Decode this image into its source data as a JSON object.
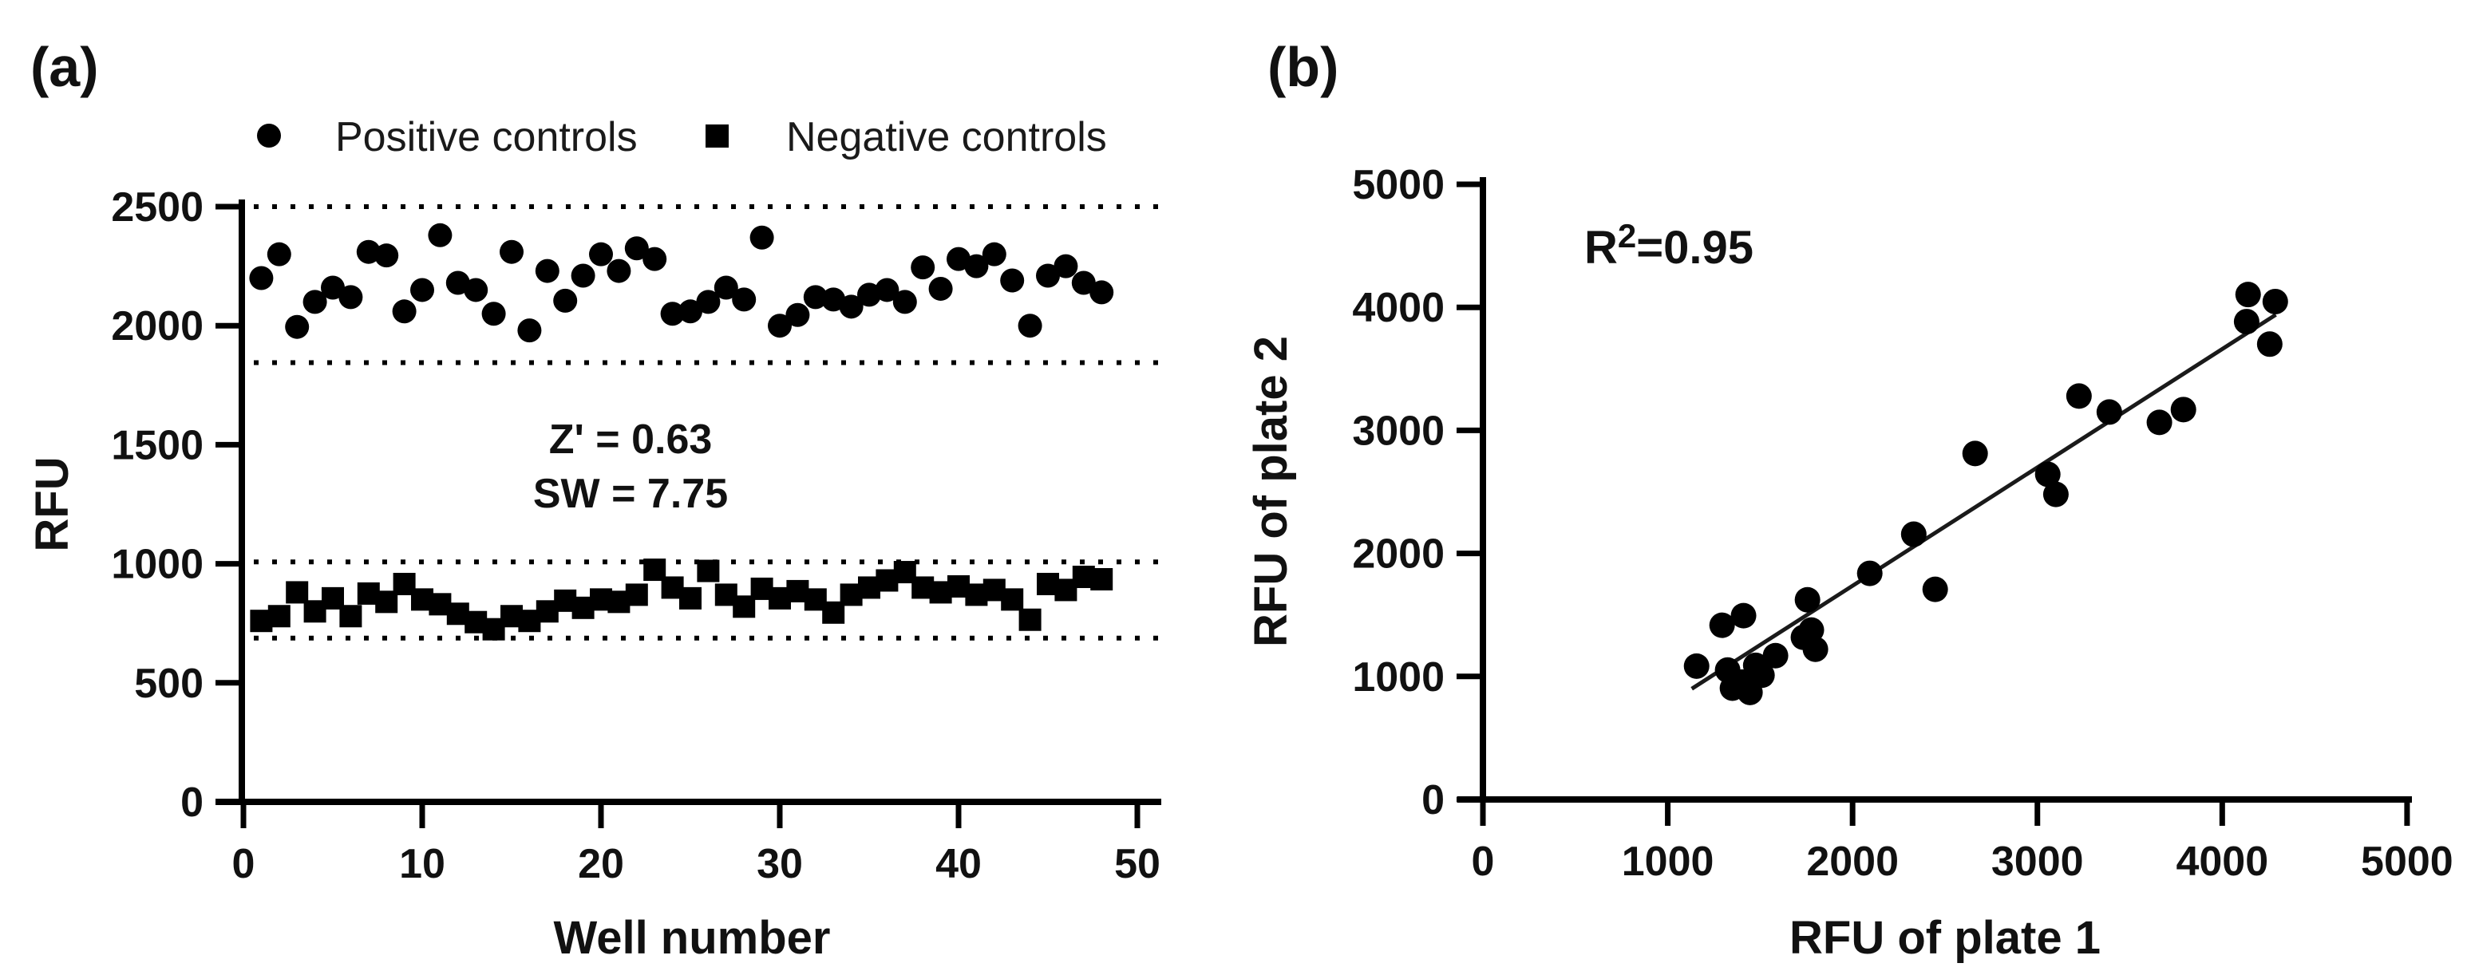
{
  "figure": {
    "panel_a_label": "(a)",
    "panel_b_label": "(b)",
    "background": "#ffffff",
    "marker_color": "#000000"
  },
  "chart_data": [
    {
      "id": "panel-a",
      "type": "scatter",
      "title": "",
      "xlabel": "Well number",
      "ylabel": "RFU",
      "xlim": [
        0,
        51
      ],
      "ylim": [
        0,
        2500
      ],
      "xticks": [
        0,
        10,
        20,
        30,
        40,
        50
      ],
      "yticks": [
        0,
        500,
        1000,
        1500,
        2000,
        2500
      ],
      "grid": false,
      "legend_position": "top",
      "legend": [
        {
          "label": "Positive controls",
          "marker": "circle"
        },
        {
          "label": "Negative controls",
          "marker": "square"
        }
      ],
      "annotations": {
        "z_prime": "Z' = 0.63",
        "sw": "SW = 7.75"
      },
      "dotted_lines_y": [
        2500,
        1845,
        1008,
        688
      ],
      "x_start": 1,
      "x_step": 1,
      "series": [
        {
          "name": "Positive controls",
          "marker": "circle",
          "values": [
            2200,
            2300,
            1995,
            2100,
            2160,
            2120,
            2310,
            2295,
            2060,
            2150,
            2380,
            2180,
            2150,
            2050,
            2310,
            1980,
            2230,
            2105,
            2210,
            2300,
            2230,
            2325,
            2280,
            2050,
            2060,
            2100,
            2160,
            2110,
            2370,
            2000,
            2045,
            2120,
            2110,
            2080,
            2130,
            2150,
            2100,
            2245,
            2155,
            2280,
            2250,
            2300,
            2190,
            2000,
            2210,
            2250,
            2180,
            2140
          ]
        },
        {
          "name": "Negative controls",
          "marker": "square",
          "values": [
            760,
            780,
            880,
            800,
            855,
            780,
            875,
            840,
            915,
            850,
            830,
            790,
            755,
            725,
            780,
            760,
            800,
            845,
            815,
            850,
            840,
            870,
            975,
            900,
            855,
            970,
            870,
            820,
            895,
            855,
            885,
            850,
            795,
            870,
            900,
            930,
            965,
            900,
            880,
            905,
            870,
            890,
            850,
            765,
            915,
            890,
            945,
            935
          ]
        }
      ]
    },
    {
      "id": "panel-b",
      "type": "scatter",
      "title": "",
      "xlabel": "RFU of plate 1",
      "ylabel": "RFU of plate 2",
      "xlim": [
        0,
        5000
      ],
      "ylim": [
        0,
        5000
      ],
      "xticks": [
        0,
        1000,
        2000,
        3000,
        4000,
        5000
      ],
      "yticks": [
        0,
        1000,
        2000,
        3000,
        4000,
        5000
      ],
      "grid": false,
      "annotation_r2": {
        "base": "R",
        "sup": "2",
        "rest": "=0.95"
      },
      "points": [
        [
          1156,
          1084
        ],
        [
          1294,
          1416
        ],
        [
          1410,
          1494
        ],
        [
          1324,
          1052
        ],
        [
          1350,
          905
        ],
        [
          1402,
          954
        ],
        [
          1445,
          870
        ],
        [
          1476,
          1090
        ],
        [
          1510,
          1010
        ],
        [
          1583,
          1169
        ],
        [
          1734,
          1318
        ],
        [
          1777,
          1377
        ],
        [
          1799,
          1221
        ],
        [
          1756,
          1623
        ],
        [
          2093,
          1838
        ],
        [
          2331,
          2156
        ],
        [
          2447,
          1708
        ],
        [
          2663,
          2812
        ],
        [
          3056,
          2643
        ],
        [
          3100,
          2480
        ],
        [
          3225,
          3279
        ],
        [
          3389,
          3149
        ],
        [
          3660,
          3065
        ],
        [
          3790,
          3169
        ],
        [
          4132,
          3884
        ],
        [
          4140,
          4104
        ],
        [
          4257,
          3701
        ],
        [
          4287,
          4047
        ]
      ],
      "fit_line": {
        "x1": 1130,
        "y1": 900,
        "x2": 4290,
        "y2": 3940
      }
    }
  ]
}
